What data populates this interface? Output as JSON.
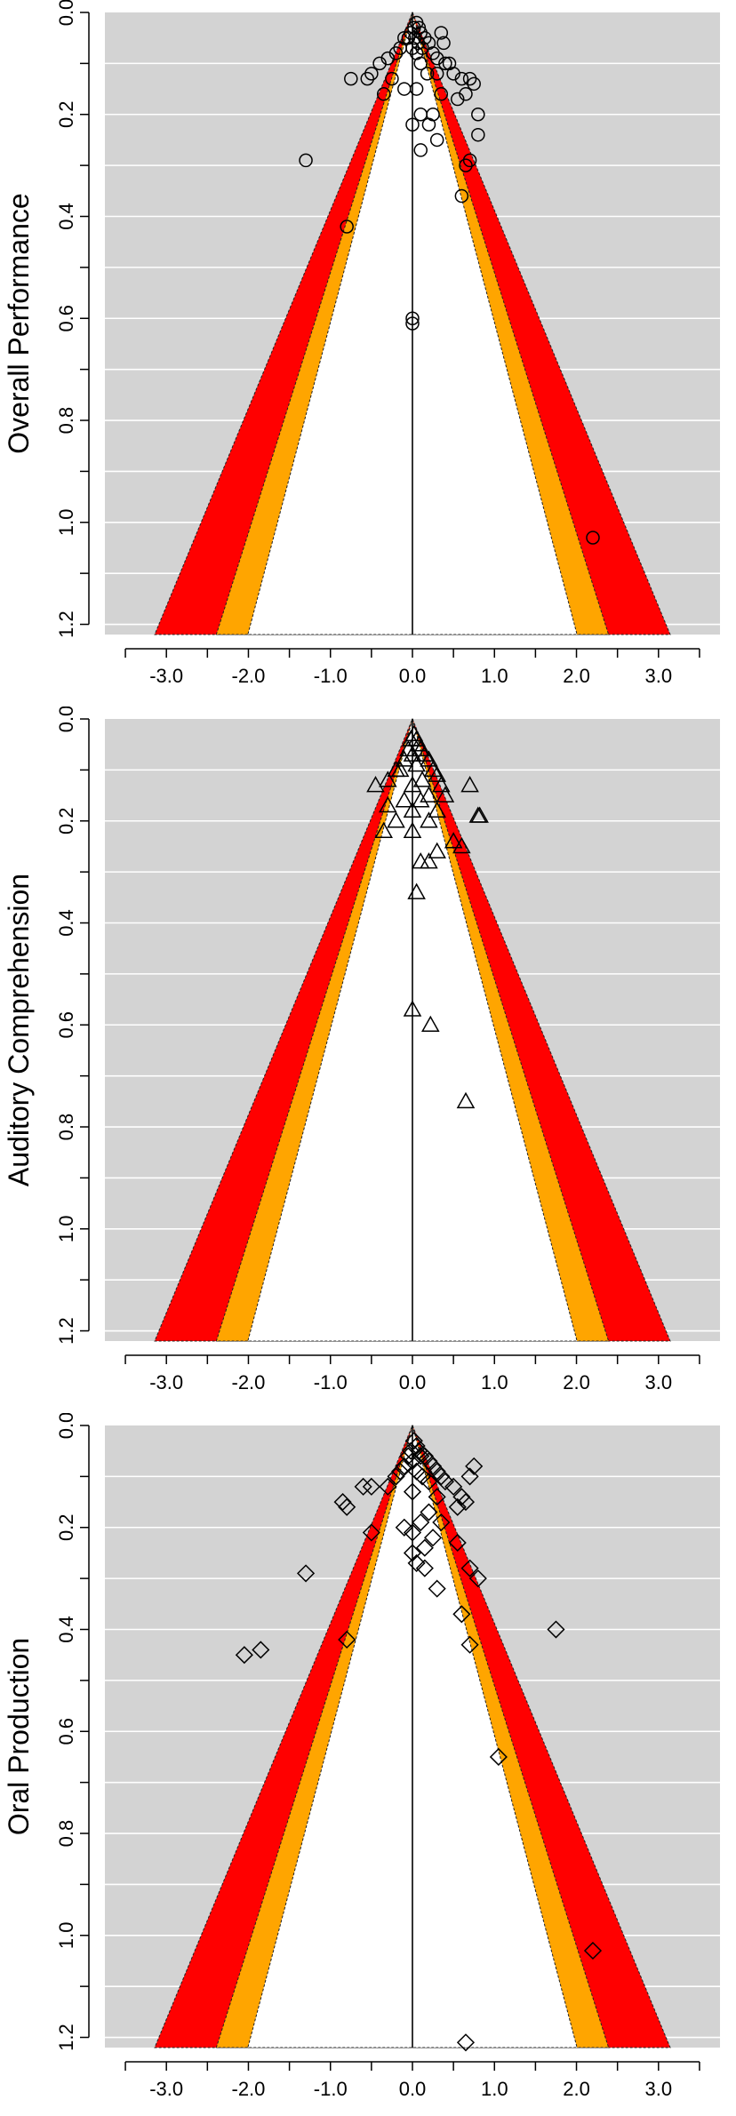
{
  "chart_data": [
    {
      "type": "scatter",
      "title": "",
      "xlabel": "",
      "ylabel": "Overall Performance",
      "xlim": [
        -3.75,
        3.75
      ],
      "ylim": [
        0,
        1.22
      ],
      "y_reversed": true,
      "grid": true,
      "marker": "circle",
      "contours": [
        {
          "level": "p<0.10",
          "z": 1.645,
          "color": "#ffffff"
        },
        {
          "level": "p<0.05",
          "z": 1.96,
          "color": "#ffa500"
        },
        {
          "level": "p<0.01",
          "z": 2.576,
          "color": "#ff0000"
        }
      ],
      "x_ticks": [
        "-3.0",
        "-2.0",
        "-1.0",
        "0.0",
        "1.0",
        "2.0",
        "3.0"
      ],
      "y_ticks": [
        "0.0",
        "0.2",
        "0.4",
        "0.6",
        "0.8",
        "1.0",
        "1.2"
      ],
      "points": [
        [
          0.02,
          0.03
        ],
        [
          0.05,
          0.02
        ],
        [
          0.08,
          0.03
        ],
        [
          -0.02,
          0.04
        ],
        [
          0.1,
          0.04
        ],
        [
          0.03,
          0.05
        ],
        [
          -0.05,
          0.05
        ],
        [
          0.07,
          0.06
        ],
        [
          0.15,
          0.05
        ],
        [
          -0.1,
          0.05
        ],
        [
          0.2,
          0.06
        ],
        [
          0.0,
          0.07
        ],
        [
          0.12,
          0.07
        ],
        [
          -0.15,
          0.07
        ],
        [
          0.25,
          0.08
        ],
        [
          0.05,
          0.08
        ],
        [
          -0.2,
          0.08
        ],
        [
          0.3,
          0.09
        ],
        [
          -0.3,
          0.09
        ],
        [
          0.1,
          0.1
        ],
        [
          0.35,
          0.04
        ],
        [
          0.38,
          0.06
        ],
        [
          0.4,
          0.1
        ],
        [
          0.45,
          0.1
        ],
        [
          -0.4,
          0.1
        ],
        [
          0.5,
          0.12
        ],
        [
          -0.5,
          0.12
        ],
        [
          0.3,
          0.12
        ],
        [
          0.18,
          0.12
        ],
        [
          -0.25,
          0.13
        ],
        [
          0.6,
          0.13
        ],
        [
          0.7,
          0.13
        ],
        [
          0.75,
          0.14
        ],
        [
          0.65,
          0.16
        ],
        [
          0.55,
          0.17
        ],
        [
          0.35,
          0.16
        ],
        [
          -0.1,
          0.15
        ],
        [
          0.05,
          0.15
        ],
        [
          -0.55,
          0.13
        ],
        [
          -0.75,
          0.13
        ],
        [
          -0.35,
          0.16
        ],
        [
          0.8,
          0.2
        ],
        [
          0.25,
          0.2
        ],
        [
          0.1,
          0.2
        ],
        [
          0.2,
          0.22
        ],
        [
          0.0,
          0.22
        ],
        [
          0.8,
          0.24
        ],
        [
          0.3,
          0.25
        ],
        [
          0.1,
          0.27
        ],
        [
          0.7,
          0.29
        ],
        [
          0.65,
          0.3
        ],
        [
          -1.3,
          0.29
        ],
        [
          0.6,
          0.36
        ],
        [
          -0.8,
          0.42
        ],
        [
          0.0,
          0.6
        ],
        [
          0.0,
          0.61
        ],
        [
          2.2,
          1.03
        ]
      ]
    },
    {
      "type": "scatter",
      "title": "",
      "xlabel": "",
      "ylabel": "Auditory Comprehension",
      "xlim": [
        -3.75,
        3.75
      ],
      "ylim": [
        0,
        1.22
      ],
      "y_reversed": true,
      "grid": true,
      "marker": "triangle",
      "contours": [
        {
          "level": "p<0.10",
          "z": 1.645,
          "color": "#ffffff"
        },
        {
          "level": "p<0.05",
          "z": 1.96,
          "color": "#ffa500"
        },
        {
          "level": "p<0.01",
          "z": 2.576,
          "color": "#ff0000"
        }
      ],
      "x_ticks": [
        "-3.0",
        "-2.0",
        "-1.0",
        "0.0",
        "1.0",
        "2.0",
        "3.0"
      ],
      "y_ticks": [
        "0.0",
        "0.2",
        "0.4",
        "0.6",
        "0.8",
        "1.0",
        "1.2"
      ],
      "points": [
        [
          0.02,
          0.03
        ],
        [
          0.05,
          0.04
        ],
        [
          -0.02,
          0.04
        ],
        [
          0.08,
          0.05
        ],
        [
          0.1,
          0.06
        ],
        [
          -0.05,
          0.06
        ],
        [
          0.0,
          0.07
        ],
        [
          0.15,
          0.07
        ],
        [
          -0.1,
          0.08
        ],
        [
          0.2,
          0.08
        ],
        [
          0.05,
          0.09
        ],
        [
          -0.15,
          0.1
        ],
        [
          0.25,
          0.1
        ],
        [
          -0.2,
          0.1
        ],
        [
          0.3,
          0.11
        ],
        [
          0.12,
          0.12
        ],
        [
          -0.3,
          0.12
        ],
        [
          0.35,
          0.13
        ],
        [
          -0.45,
          0.13
        ],
        [
          0.0,
          0.13
        ],
        [
          0.7,
          0.13
        ],
        [
          0.2,
          0.15
        ],
        [
          0.4,
          0.15
        ],
        [
          -0.1,
          0.16
        ],
        [
          0.1,
          0.16
        ],
        [
          -0.3,
          0.17
        ],
        [
          0.3,
          0.18
        ],
        [
          0.0,
          0.18
        ],
        [
          0.8,
          0.19
        ],
        [
          0.82,
          0.19
        ],
        [
          -0.2,
          0.2
        ],
        [
          0.2,
          0.2
        ],
        [
          -0.35,
          0.22
        ],
        [
          0.0,
          0.22
        ],
        [
          0.5,
          0.24
        ],
        [
          0.6,
          0.25
        ],
        [
          0.3,
          0.26
        ],
        [
          0.2,
          0.28
        ],
        [
          0.1,
          0.28
        ],
        [
          0.05,
          0.34
        ],
        [
          0.0,
          0.57
        ],
        [
          0.22,
          0.6
        ],
        [
          0.65,
          0.75
        ]
      ]
    },
    {
      "type": "scatter",
      "title": "",
      "xlabel": "",
      "ylabel": "Oral Production",
      "xlim": [
        -3.75,
        3.75
      ],
      "ylim": [
        0,
        1.22
      ],
      "y_reversed": true,
      "grid": true,
      "marker": "diamond",
      "contours": [
        {
          "level": "p<0.10",
          "z": 1.645,
          "color": "#ffffff"
        },
        {
          "level": "p<0.05",
          "z": 1.96,
          "color": "#ffa500"
        },
        {
          "level": "p<0.01",
          "z": 2.576,
          "color": "#ff0000"
        }
      ],
      "x_ticks": [
        "-3.0",
        "-2.0",
        "-1.0",
        "0.0",
        "1.0",
        "2.0",
        "3.0"
      ],
      "y_ticks": [
        "0.0",
        "0.2",
        "0.4",
        "0.6",
        "0.8",
        "1.0",
        "1.2"
      ],
      "points": [
        [
          0.02,
          0.03
        ],
        [
          0.05,
          0.04
        ],
        [
          0.08,
          0.05
        ],
        [
          -0.02,
          0.05
        ],
        [
          0.1,
          0.06
        ],
        [
          0.15,
          0.06
        ],
        [
          -0.05,
          0.06
        ],
        [
          0.2,
          0.07
        ],
        [
          0.0,
          0.07
        ],
        [
          -0.1,
          0.08
        ],
        [
          0.25,
          0.08
        ],
        [
          0.3,
          0.09
        ],
        [
          0.05,
          0.09
        ],
        [
          -0.15,
          0.09
        ],
        [
          0.35,
          0.1
        ],
        [
          0.12,
          0.1
        ],
        [
          -0.2,
          0.1
        ],
        [
          0.4,
          0.11
        ],
        [
          0.2,
          0.11
        ],
        [
          -0.3,
          0.12
        ],
        [
          0.5,
          0.12
        ],
        [
          0.7,
          0.1
        ],
        [
          0.75,
          0.08
        ],
        [
          0.6,
          0.14
        ],
        [
          0.65,
          0.15
        ],
        [
          0.55,
          0.16
        ],
        [
          0.3,
          0.14
        ],
        [
          0.0,
          0.13
        ],
        [
          -0.5,
          0.12
        ],
        [
          -0.6,
          0.12
        ],
        [
          -0.85,
          0.15
        ],
        [
          -0.8,
          0.16
        ],
        [
          0.2,
          0.17
        ],
        [
          0.1,
          0.19
        ],
        [
          -0.1,
          0.2
        ],
        [
          0.0,
          0.21
        ],
        [
          0.35,
          0.19
        ],
        [
          0.25,
          0.22
        ],
        [
          0.15,
          0.24
        ],
        [
          0.55,
          0.23
        ],
        [
          0.0,
          0.25
        ],
        [
          -0.5,
          0.21
        ],
        [
          0.05,
          0.27
        ],
        [
          0.15,
          0.28
        ],
        [
          0.3,
          0.32
        ],
        [
          0.8,
          0.3
        ],
        [
          0.7,
          0.28
        ],
        [
          -1.3,
          0.29
        ],
        [
          0.6,
          0.37
        ],
        [
          0.7,
          0.43
        ],
        [
          -0.8,
          0.42
        ],
        [
          1.75,
          0.4
        ],
        [
          -2.05,
          0.45
        ],
        [
          -1.85,
          0.44
        ],
        [
          1.05,
          0.65
        ],
        [
          2.2,
          1.03
        ],
        [
          0.65,
          1.21
        ]
      ]
    }
  ]
}
